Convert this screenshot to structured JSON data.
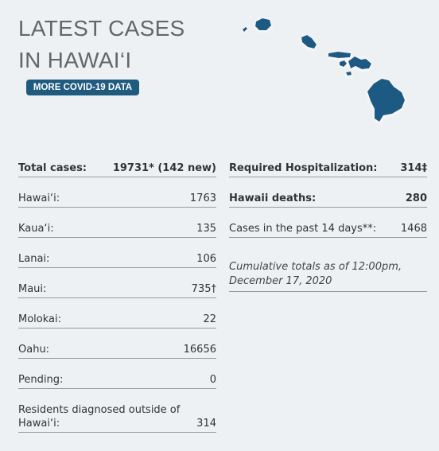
{
  "header": {
    "title": "LATEST CASES IN HAWAI‘I",
    "button": "MORE COVID-19 DATA"
  },
  "left": {
    "rows": [
      [
        "Total cases:",
        "19731* (142 new)"
      ],
      [
        "Hawai‘i:",
        "1763"
      ],
      [
        "Kaua‘i:",
        "135"
      ],
      [
        "Lanai:",
        "106"
      ],
      [
        "Maui:",
        "735†"
      ],
      [
        "Molokai:",
        "22"
      ],
      [
        "Oahu:",
        "16656"
      ],
      [
        "Pending:",
        "0"
      ],
      [
        "Residents diagnosed outside of Hawai‘i:",
        "314"
      ]
    ]
  },
  "right": {
    "rows": [
      [
        "Required Hospitalization:",
        "314‡"
      ],
      [
        "Hawaii deaths:",
        "280"
      ],
      [
        "Cases in the past 14 days**:",
        "1468"
      ]
    ],
    "note": "Cumulative totals as of 12:00pm, December 17, 2020"
  }
}
